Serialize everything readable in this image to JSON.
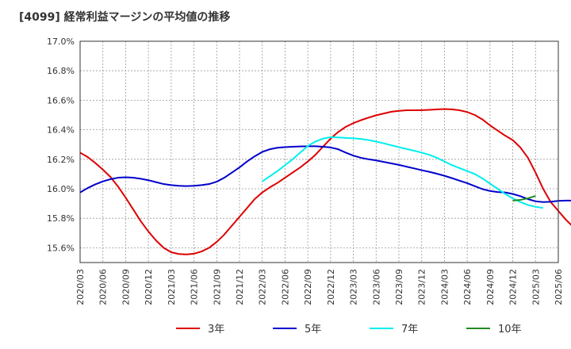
{
  "chart_data": {
    "type": "line",
    "title": "[4099]  経常利益マージンの平均値の推移",
    "xlabel": "",
    "ylabel": "",
    "ylim": [
      15.5,
      17.0
    ],
    "yticks": [
      "17.0%",
      "16.8%",
      "16.6%",
      "16.4%",
      "16.2%",
      "16.0%",
      "15.8%",
      "15.6%"
    ],
    "ytick_values": [
      17.0,
      16.8,
      16.6,
      16.4,
      16.2,
      16.0,
      15.8,
      15.6
    ],
    "x_labels": [
      "2020/03",
      "2020/06",
      "2020/09",
      "2020/12",
      "2021/03",
      "2021/06",
      "2021/09",
      "2021/12",
      "2022/03",
      "2022/06",
      "2022/09",
      "2022/12",
      "2023/03",
      "2023/06",
      "2023/09",
      "2023/12",
      "2024/03",
      "2024/06",
      "2024/09",
      "2024/12",
      "2025/03",
      "2025/06"
    ],
    "grid": true,
    "legend_position": "bottom",
    "series": [
      {
        "name": "3年",
        "color": "#dd0000",
        "start": "2020/03",
        "values": [
          16.245,
          16.215,
          16.175,
          16.13,
          16.08,
          16.015,
          15.94,
          15.86,
          15.78,
          15.71,
          15.65,
          15.6,
          15.57,
          15.558,
          15.555,
          15.56,
          15.575,
          15.6,
          15.64,
          15.69,
          15.75,
          15.81,
          15.87,
          15.93,
          15.975,
          16.01,
          16.04,
          16.075,
          16.11,
          16.145,
          16.185,
          16.23,
          16.285,
          16.34,
          16.385,
          16.42,
          16.445,
          16.465,
          16.482,
          16.498,
          16.51,
          16.522,
          16.528,
          16.532,
          16.532,
          16.533,
          16.535,
          16.538,
          16.54,
          16.538,
          16.532,
          16.52,
          16.5,
          16.47,
          16.43,
          16.395,
          16.36,
          16.33,
          16.28,
          16.21,
          16.11,
          16.0,
          15.91,
          15.85,
          15.79,
          15.74,
          15.695,
          15.655
        ]
      },
      {
        "name": "5年",
        "color": "#0000cc",
        "start": "2020/03",
        "values": [
          15.975,
          16.005,
          16.03,
          16.05,
          16.065,
          16.075,
          16.078,
          16.075,
          16.068,
          16.058,
          16.045,
          16.032,
          16.025,
          16.02,
          16.018,
          16.02,
          16.025,
          16.032,
          16.048,
          16.075,
          16.11,
          16.145,
          16.185,
          16.22,
          16.25,
          16.268,
          16.278,
          16.282,
          16.285,
          16.287,
          16.288,
          16.288,
          16.285,
          16.28,
          16.268,
          16.245,
          16.225,
          16.21,
          16.2,
          16.192,
          16.182,
          16.172,
          16.162,
          16.15,
          16.138,
          16.126,
          16.115,
          16.102,
          16.088,
          16.072,
          16.055,
          16.038,
          16.018,
          15.998,
          15.985,
          15.978,
          15.975,
          15.965,
          15.95,
          15.93,
          15.915,
          15.91,
          15.912,
          15.918,
          15.92,
          15.92
        ]
      },
      {
        "name": "7年",
        "color": "#00eeee",
        "start": "2022/03",
        "values": [
          16.05,
          16.085,
          16.12,
          16.16,
          16.2,
          16.245,
          16.29,
          16.32,
          16.34,
          16.35,
          16.348,
          16.345,
          16.342,
          16.338,
          16.33,
          16.32,
          16.308,
          16.295,
          16.282,
          16.27,
          16.258,
          16.245,
          16.23,
          16.21,
          16.185,
          16.16,
          16.14,
          16.12,
          16.1,
          16.07,
          16.035,
          16.0,
          15.965,
          15.935,
          15.91,
          15.89,
          15.878,
          15.87
        ]
      },
      {
        "name": "10年",
        "color": "#228b22",
        "start": "2024/12",
        "values": [
          15.92,
          15.925,
          15.935,
          15.952
        ]
      }
    ]
  }
}
